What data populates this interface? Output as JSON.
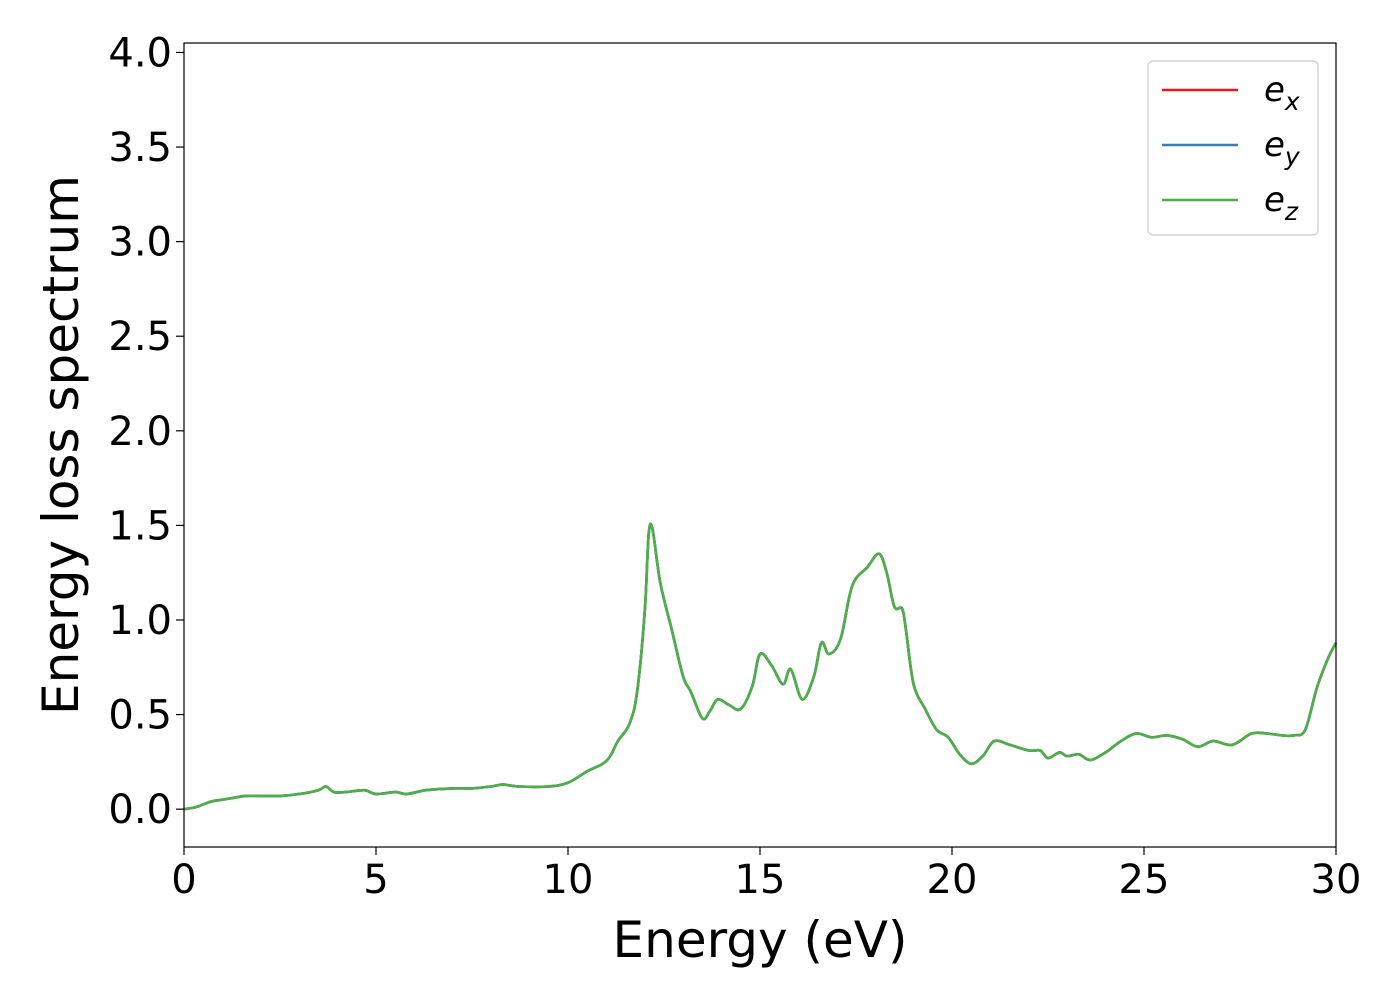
{
  "chart_data": {
    "type": "line",
    "title": "",
    "xlabel": "Energy (eV)",
    "ylabel": "Energy loss spectrum",
    "xlim": [
      0,
      30
    ],
    "ylim": [
      -0.2,
      4.05
    ],
    "xticks": [
      0,
      5,
      10,
      15,
      20,
      25,
      30
    ],
    "yticks": [
      0.0,
      0.5,
      1.0,
      1.5,
      2.0,
      2.5,
      3.0,
      3.5,
      4.0
    ],
    "xtick_labels": [
      "0",
      "5",
      "10",
      "15",
      "20",
      "25",
      "30"
    ],
    "ytick_labels": [
      "0.0",
      "0.5",
      "1.0",
      "1.5",
      "2.0",
      "2.5",
      "3.0",
      "3.5",
      "4.0"
    ],
    "grid": false,
    "legend_position": "top-right",
    "x": [
      0,
      0.3,
      0.7,
      1.0,
      1.3,
      1.6,
      2.0,
      2.5,
      3.0,
      3.5,
      3.7,
      3.9,
      4.2,
      4.7,
      5.0,
      5.5,
      5.8,
      6.3,
      7.0,
      7.5,
      8.0,
      8.3,
      8.7,
      9.5,
      10.0,
      10.5,
      10.9,
      11.1,
      11.3,
      11.6,
      11.8,
      12.0,
      12.1,
      12.2,
      12.4,
      12.7,
      13.0,
      13.2,
      13.5,
      13.7,
      13.9,
      14.2,
      14.5,
      14.8,
      15.0,
      15.3,
      15.6,
      15.8,
      16.1,
      16.4,
      16.6,
      16.8,
      17.1,
      17.4,
      17.8,
      18.1,
      18.3,
      18.5,
      18.7,
      18.8,
      19.0,
      19.3,
      19.6,
      19.9,
      20.2,
      20.5,
      20.8,
      21.1,
      21.5,
      22.0,
      22.3,
      22.5,
      22.8,
      23.0,
      23.3,
      23.6,
      24.0,
      24.4,
      24.8,
      25.2,
      25.6,
      26.0,
      26.4,
      26.8,
      27.3,
      27.8,
      28.2,
      28.6,
      28.9,
      29.2,
      29.5,
      29.8,
      30.0
    ],
    "series": [
      {
        "name": "e_x",
        "label_base": "e",
        "label_sub": "x",
        "color": "#e41a1c",
        "values": [
          0.0,
          0.01,
          0.04,
          0.05,
          0.06,
          0.07,
          0.07,
          0.07,
          0.08,
          0.1,
          0.12,
          0.09,
          0.09,
          0.1,
          0.08,
          0.09,
          0.08,
          0.1,
          0.11,
          0.11,
          0.12,
          0.13,
          0.12,
          0.12,
          0.14,
          0.2,
          0.24,
          0.28,
          0.36,
          0.45,
          0.62,
          1.05,
          1.45,
          1.48,
          1.2,
          0.95,
          0.7,
          0.62,
          0.48,
          0.52,
          0.58,
          0.55,
          0.53,
          0.65,
          0.82,
          0.76,
          0.66,
          0.74,
          0.58,
          0.7,
          0.88,
          0.82,
          0.9,
          1.18,
          1.28,
          1.35,
          1.25,
          1.07,
          1.06,
          0.95,
          0.66,
          0.53,
          0.42,
          0.38,
          0.29,
          0.24,
          0.28,
          0.36,
          0.34,
          0.31,
          0.31,
          0.27,
          0.3,
          0.28,
          0.29,
          0.26,
          0.3,
          0.36,
          0.4,
          0.38,
          0.39,
          0.37,
          0.33,
          0.36,
          0.34,
          0.4,
          0.4,
          0.39,
          0.39,
          0.42,
          0.64,
          0.8,
          0.88
        ]
      },
      {
        "name": "e_y",
        "label_base": "e",
        "label_sub": "y",
        "color": "#377eb8",
        "values": [
          0.0,
          0.01,
          0.04,
          0.05,
          0.06,
          0.07,
          0.07,
          0.07,
          0.08,
          0.1,
          0.12,
          0.09,
          0.09,
          0.1,
          0.08,
          0.09,
          0.08,
          0.1,
          0.11,
          0.11,
          0.12,
          0.13,
          0.12,
          0.12,
          0.14,
          0.2,
          0.24,
          0.28,
          0.36,
          0.45,
          0.62,
          1.05,
          1.45,
          1.48,
          1.2,
          0.95,
          0.7,
          0.62,
          0.48,
          0.52,
          0.58,
          0.55,
          0.53,
          0.65,
          0.82,
          0.76,
          0.66,
          0.74,
          0.58,
          0.7,
          0.88,
          0.82,
          0.9,
          1.18,
          1.28,
          1.35,
          1.25,
          1.07,
          1.06,
          0.95,
          0.66,
          0.53,
          0.42,
          0.38,
          0.29,
          0.24,
          0.28,
          0.36,
          0.34,
          0.31,
          0.31,
          0.27,
          0.3,
          0.28,
          0.29,
          0.26,
          0.3,
          0.36,
          0.4,
          0.38,
          0.39,
          0.37,
          0.33,
          0.36,
          0.34,
          0.4,
          0.4,
          0.39,
          0.39,
          0.42,
          0.64,
          0.8,
          0.88
        ]
      },
      {
        "name": "e_z",
        "label_base": "e",
        "label_sub": "z",
        "color": "#4daf4a",
        "values": [
          0.0,
          0.01,
          0.04,
          0.05,
          0.06,
          0.07,
          0.07,
          0.07,
          0.08,
          0.1,
          0.12,
          0.09,
          0.09,
          0.1,
          0.08,
          0.09,
          0.08,
          0.1,
          0.11,
          0.11,
          0.12,
          0.13,
          0.12,
          0.12,
          0.14,
          0.2,
          0.24,
          0.28,
          0.36,
          0.45,
          0.62,
          1.05,
          1.45,
          1.48,
          1.2,
          0.95,
          0.7,
          0.62,
          0.48,
          0.52,
          0.58,
          0.55,
          0.53,
          0.65,
          0.82,
          0.76,
          0.66,
          0.74,
          0.58,
          0.7,
          0.88,
          0.82,
          0.9,
          1.18,
          1.28,
          1.35,
          1.25,
          1.07,
          1.06,
          0.95,
          0.66,
          0.53,
          0.42,
          0.38,
          0.29,
          0.24,
          0.28,
          0.36,
          0.34,
          0.31,
          0.31,
          0.27,
          0.3,
          0.28,
          0.29,
          0.26,
          0.3,
          0.36,
          0.4,
          0.38,
          0.39,
          0.37,
          0.33,
          0.36,
          0.34,
          0.4,
          0.4,
          0.39,
          0.39,
          0.42,
          0.64,
          0.8,
          0.88
        ]
      }
    ]
  }
}
